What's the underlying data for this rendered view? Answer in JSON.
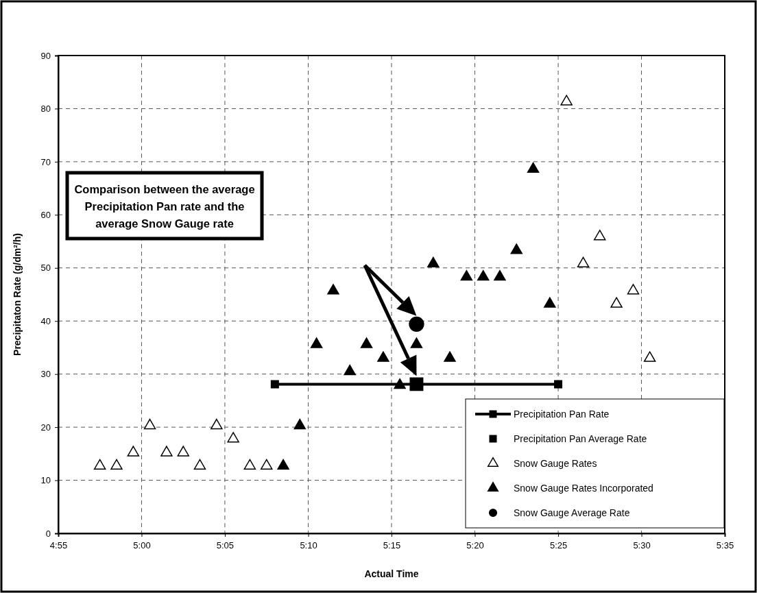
{
  "chart_data": {
    "type": "scatter",
    "xlabel": "Actual Time",
    "ylabel": "Precipitaton Rate (g/dm²/h)",
    "annotations": [
      "Comparison between the average Precipitation Pan rate and the average Snow Gauge rate"
    ],
    "xlim": [
      4.9167,
      5.5833
    ],
    "xticks": [
      {
        "value": 4.9167,
        "label": "4:55"
      },
      {
        "value": 5,
        "label": "5:00"
      },
      {
        "value": 5.0833,
        "label": "5:05"
      },
      {
        "value": 5.1667,
        "label": "5:10"
      },
      {
        "value": 5.25,
        "label": "5:15"
      },
      {
        "value": 5.3333,
        "label": "5:20"
      },
      {
        "value": 5.4167,
        "label": "5:25"
      },
      {
        "value": 5.5,
        "label": "5:30"
      },
      {
        "value": 5.5833,
        "label": "5:35"
      }
    ],
    "ylim": [
      0,
      90
    ],
    "yticks": [
      0,
      10,
      20,
      30,
      40,
      50,
      60,
      70,
      80,
      90
    ],
    "grid": true,
    "legend": "bottom right",
    "series": [
      {
        "name": "Precipitation Pan Rate",
        "type": "line",
        "marker": "square",
        "color": "#000000",
        "x": [
          5.1333,
          5.4167
        ],
        "values": [
          28.1,
          28.1
        ]
      },
      {
        "name": "Precipitation Pan Average Rate",
        "type": "scatter",
        "marker": "square",
        "color": "#000000",
        "x": [
          5.275
        ],
        "values": [
          28.1
        ]
      },
      {
        "name": "Snow Gauge Rates",
        "type": "scatter",
        "marker": "triangle",
        "color": "#ffffff",
        "x": [
          4.9583,
          4.975,
          4.9917,
          5.0083,
          5.025,
          5.0417,
          5.0583,
          5.075,
          5.0917,
          5.1083,
          5.125,
          5.425,
          5.4417,
          5.4583,
          5.475,
          5.4917,
          5.5083
        ],
        "values": [
          12.7,
          12.7,
          15.2,
          20.3,
          15.2,
          15.2,
          12.7,
          20.3,
          17.8,
          12.7,
          12.7,
          81.3,
          50.8,
          55.9,
          43.2,
          45.7,
          33.0
        ]
      },
      {
        "name": "Snow Gauge Rates Incorporated",
        "type": "scatter",
        "marker": "triangle",
        "color": "#000000",
        "x": [
          5.1417,
          5.1583,
          5.175,
          5.1917,
          5.2083,
          5.225,
          5.2417,
          5.2583,
          5.275,
          5.2917,
          5.3083,
          5.325,
          5.3417,
          5.3583,
          5.375,
          5.3917,
          5.4083
        ],
        "values": [
          12.7,
          20.3,
          35.6,
          45.7,
          30.5,
          35.6,
          33.0,
          27.9,
          35.6,
          50.8,
          33.0,
          48.3,
          48.3,
          48.3,
          53.3,
          68.6,
          43.2
        ]
      },
      {
        "name": "Snow Gauge Average Rate",
        "type": "scatter",
        "marker": "circle",
        "color": "#000000",
        "x": [
          5.275
        ],
        "values": [
          39.4
        ]
      }
    ]
  }
}
